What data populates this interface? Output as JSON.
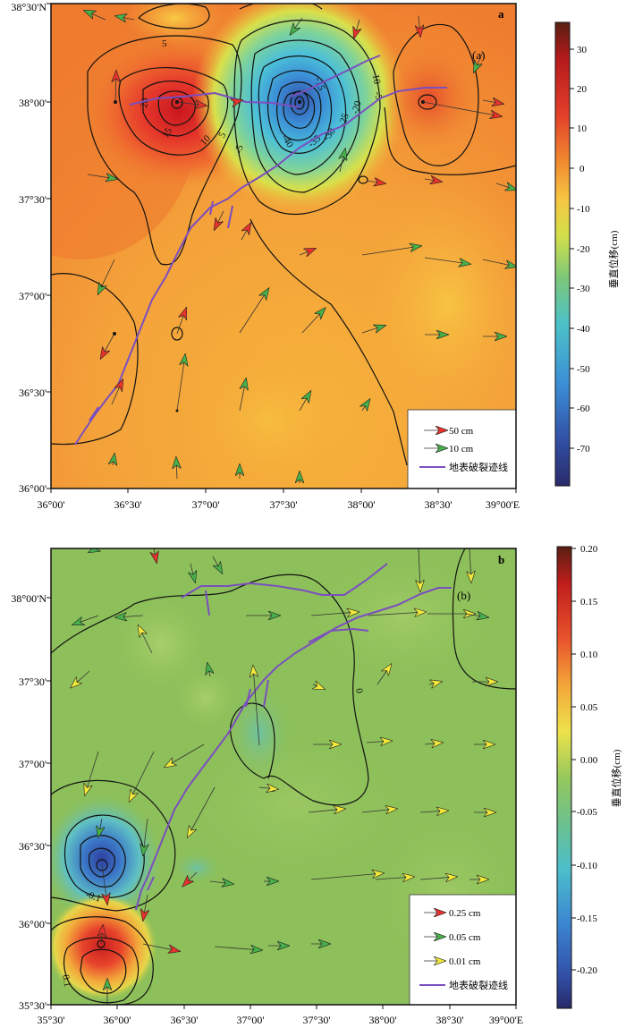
{
  "panel_a": {
    "letter": "a",
    "inset_label": "(a)",
    "x_ticks": [
      "36°00'",
      "36°30'",
      "37°00'",
      "37°30'",
      "38°00'",
      "38°30'",
      "39°00'E"
    ],
    "y_ticks": [
      "38°30'N",
      "38°00'",
      "37°30'",
      "37°00'",
      "36°30'",
      "36°00'"
    ],
    "contour_labels": [
      "-5",
      "-10",
      "-15",
      "-20",
      "-25",
      "-30",
      "-35",
      "-40",
      "5",
      "10",
      "15",
      "20",
      "5",
      "-5"
    ],
    "legend": [
      {
        "arrow_color": "#e8322b",
        "label": "50 cm"
      },
      {
        "arrow_color": "#47b14a",
        "label": "10 cm"
      },
      {
        "line_color": "#7b4fbf",
        "label": "地表破裂迹线"
      }
    ],
    "colorbar": {
      "title": "垂直位移(cm)",
      "ticks": [
        "30",
        "20",
        "10",
        "0",
        "-10",
        "-20",
        "-30",
        "-40",
        "-50",
        "-60",
        "-70"
      ],
      "min": -80,
      "max": 37
    }
  },
  "panel_b": {
    "letter": "b",
    "inset_label": "(b)",
    "x_ticks": [
      "35°30'",
      "36°00'",
      "36°30'",
      "37°00'",
      "37°30'",
      "38°00'",
      "38°30'",
      "39°00'E"
    ],
    "y_ticks": [
      "38°00'N",
      "37°30'",
      "37°00'",
      "36°30'",
      "36°00'",
      "35°30'"
    ],
    "contour_labels": [
      "0",
      "0",
      "0",
      "-0.1",
      "0.1"
    ],
    "legend": [
      {
        "arrow_color": "#e8322b",
        "label": "0.25 cm"
      },
      {
        "arrow_color": "#47b14a",
        "label": "0.05 cm"
      },
      {
        "arrow_color": "#f3e93a",
        "label": "0.01 cm"
      },
      {
        "line_color": "#7b4fbf",
        "label": "地表破裂迹线"
      }
    ],
    "colorbar": {
      "title": "垂直位移(cm)",
      "ticks": [
        "0.20",
        "0.15",
        "0.10",
        "0.05",
        "0.00",
        "-0.05",
        "-0.10",
        "-0.15",
        "-0.20"
      ],
      "min": -0.24,
      "max": 0.2
    }
  },
  "colors": {
    "rupture": "#7b4fbf",
    "red_arrow": "#e8322b",
    "green_arrow": "#47b14a",
    "yellow_arrow": "#f3e93a"
  }
}
